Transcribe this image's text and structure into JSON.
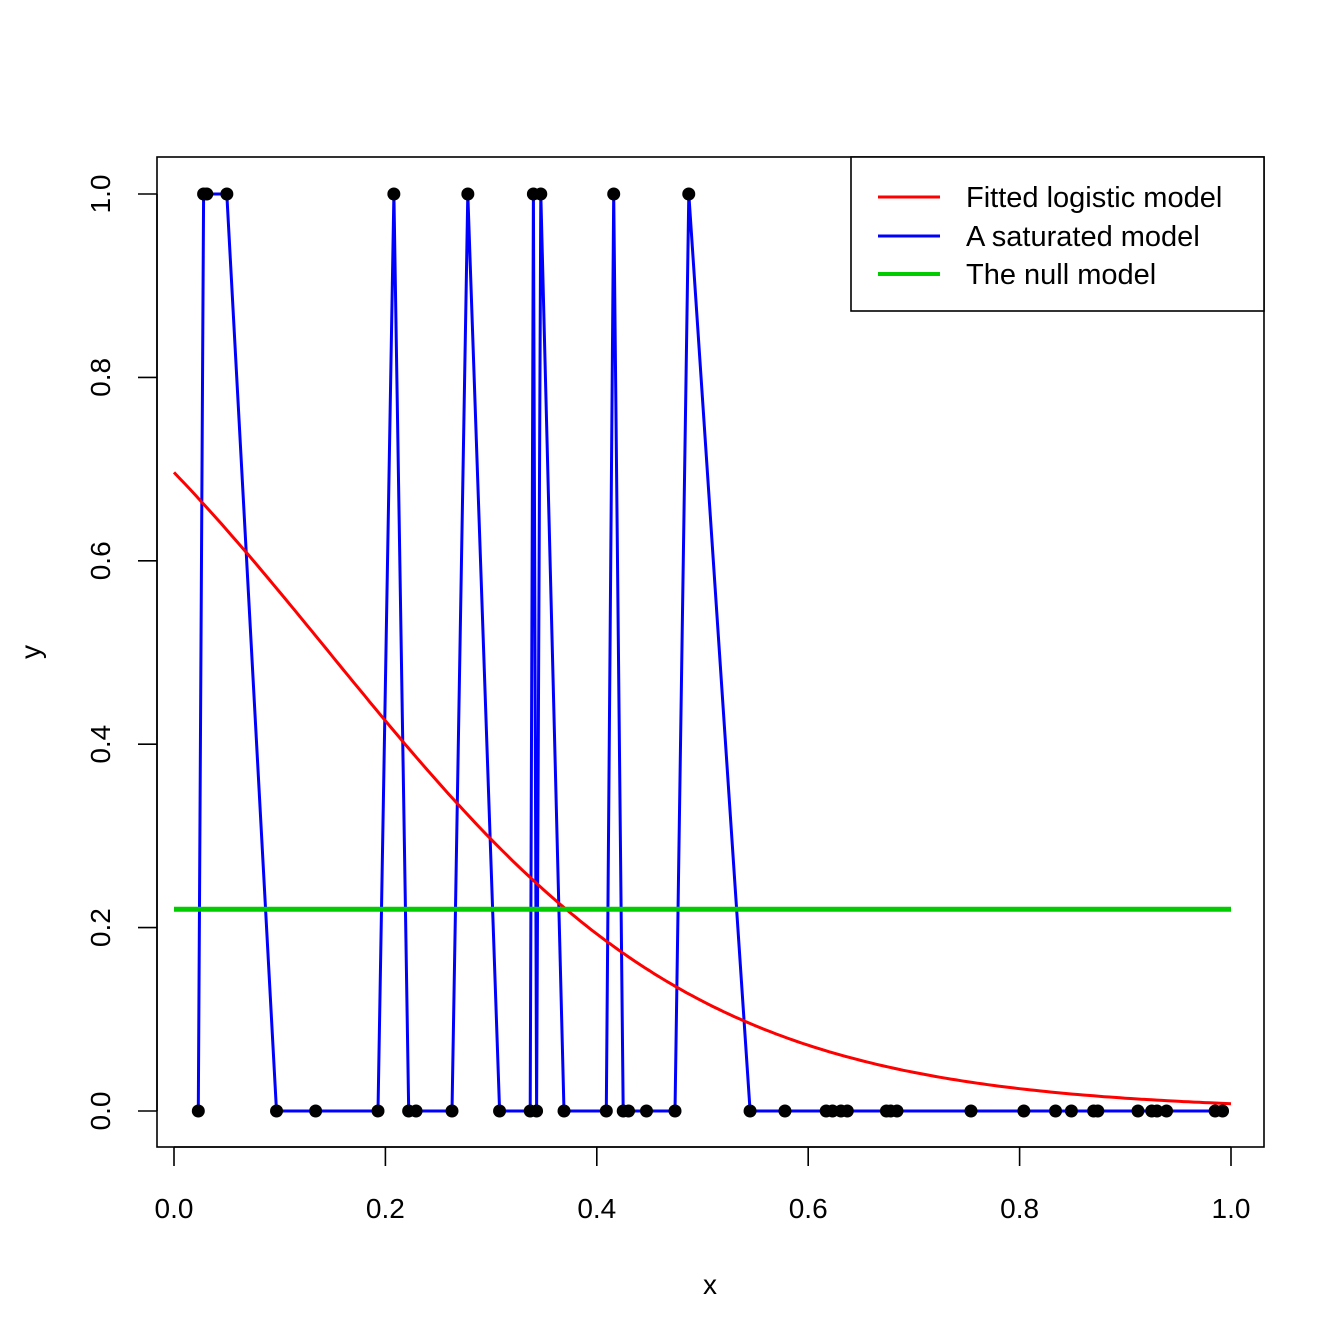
{
  "chart_data": {
    "type": "line",
    "title": "",
    "xlabel": "x",
    "ylabel": "y",
    "xlim": [
      0.0,
      1.0
    ],
    "ylim": [
      0.0,
      1.0
    ],
    "xticks": [
      "0.0",
      "0.2",
      "0.4",
      "0.6",
      "0.8",
      "1.0"
    ],
    "yticks": [
      "0.0",
      "0.2",
      "0.4",
      "0.6",
      "0.8",
      "1.0"
    ],
    "grid": false,
    "legend_position": "top-right",
    "points": {
      "x": [
        0.023,
        0.028,
        0.031,
        0.05,
        0.097,
        0.134,
        0.193,
        0.208,
        0.222,
        0.229,
        0.263,
        0.278,
        0.308,
        0.337,
        0.34,
        0.343,
        0.347,
        0.369,
        0.409,
        0.416,
        0.425,
        0.43,
        0.447,
        0.474,
        0.487,
        0.545,
        0.578,
        0.617,
        0.623,
        0.631,
        0.637,
        0.674,
        0.678,
        0.684,
        0.754,
        0.804,
        0.834,
        0.849,
        0.87,
        0.874,
        0.912,
        0.925,
        0.93,
        0.939,
        0.985,
        0.992
      ],
      "y": [
        0,
        1,
        1,
        1,
        0,
        0,
        0,
        1,
        0,
        0,
        0,
        1,
        0,
        0,
        1,
        0,
        1,
        0,
        0,
        1,
        0,
        0,
        0,
        0,
        1,
        0,
        0,
        0,
        0,
        0,
        0,
        0,
        0,
        0,
        0,
        0,
        0,
        0,
        0,
        0,
        0,
        0,
        0,
        0,
        0,
        0
      ]
    },
    "series": [
      {
        "name": "Fitted logistic model",
        "color": "#ff0000",
        "kind": "logistic",
        "intercept": 0.83,
        "slope": -5.65,
        "x_range": [
          0.0,
          1.0
        ]
      },
      {
        "name": "A saturated model",
        "color": "#0000ff",
        "kind": "data-path"
      },
      {
        "name": "The null model",
        "color": "#00cc00",
        "kind": "constant",
        "value": 0.22,
        "x_range": [
          0.0,
          1.0
        ]
      }
    ],
    "point_color": "#000000"
  }
}
